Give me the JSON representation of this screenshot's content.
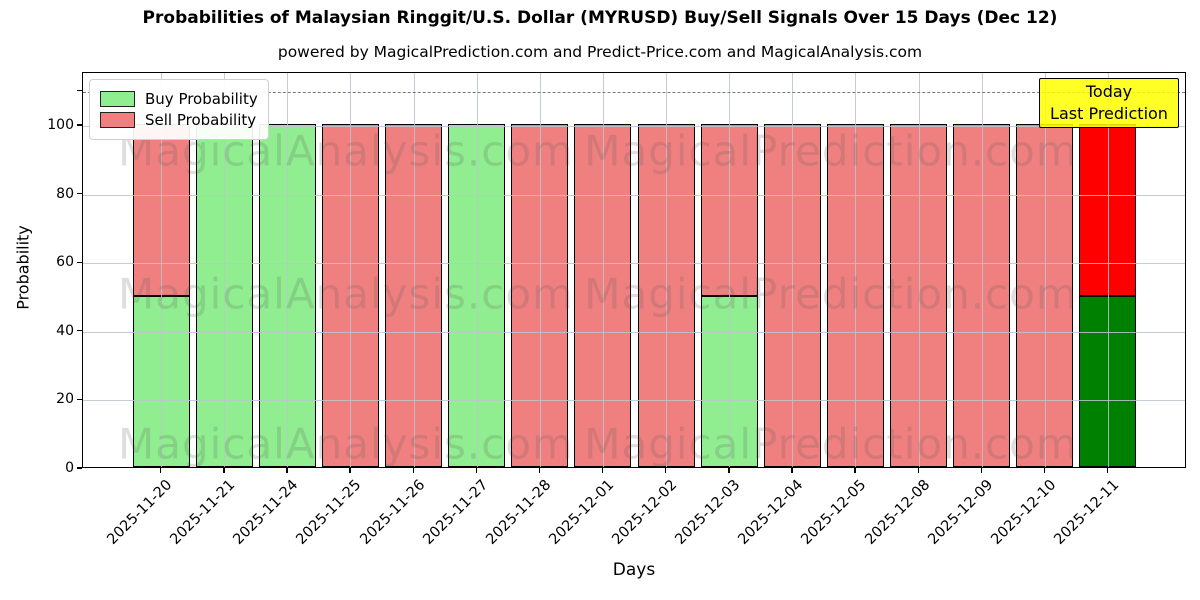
{
  "title": "Probabilities of Malaysian Ringgit/U.S. Dollar (MYRUSD) Buy/Sell Signals Over 15 Days (Dec 12)",
  "subtitle": "powered by MagicalPrediction.com and Predict-Price.com and MagicalAnalysis.com",
  "legend": {
    "items": [
      {
        "label": "Buy Probability",
        "color": "#90EE90"
      },
      {
        "label": "Sell Probability",
        "color": "#F08080"
      }
    ]
  },
  "annotation": {
    "line1": "Today",
    "line2": "Last Prediction",
    "bg_color": "#FFFF00"
  },
  "axes": {
    "ylabel": "Probability",
    "xlabel": "Days",
    "yticks": [
      0,
      20,
      40,
      60,
      80,
      100
    ],
    "ylim": [
      0,
      115
    ],
    "threshold_y": 110
  },
  "watermarks": {
    "left": "MagicalAnalysis.com",
    "right": "MagicalPrediction.com"
  },
  "chart_data": {
    "type": "bar",
    "stacked": true,
    "title": "Probabilities of Malaysian Ringgit/U.S. Dollar (MYRUSD) Buy/Sell Signals Over 15 Days (Dec 12)",
    "xlabel": "Days",
    "ylabel": "Probability",
    "ylim": [
      0,
      115
    ],
    "grid": true,
    "legend_position": "upper left",
    "threshold_dashed_line": 110,
    "categories": [
      "2025-11-20",
      "2025-11-21",
      "2025-11-24",
      "2025-11-25",
      "2025-11-26",
      "2025-11-27",
      "2025-11-28",
      "2025-12-01",
      "2025-12-02",
      "2025-12-03",
      "2025-12-04",
      "2025-12-05",
      "2025-12-08",
      "2025-12-09",
      "2025-12-10",
      "2025-12-11"
    ],
    "series": [
      {
        "name": "Buy Probability",
        "color": "#90EE90",
        "values": [
          50,
          100,
          100,
          0,
          0,
          100,
          0,
          0,
          0,
          50,
          0,
          0,
          0,
          0,
          0,
          50
        ]
      },
      {
        "name": "Sell Probability",
        "color": "#F08080",
        "values": [
          50,
          0,
          0,
          100,
          100,
          0,
          100,
          100,
          100,
          50,
          100,
          100,
          100,
          100,
          100,
          50
        ]
      }
    ],
    "today": {
      "index": 15,
      "buy_color": "#008000",
      "sell_color": "#FF0000"
    }
  }
}
